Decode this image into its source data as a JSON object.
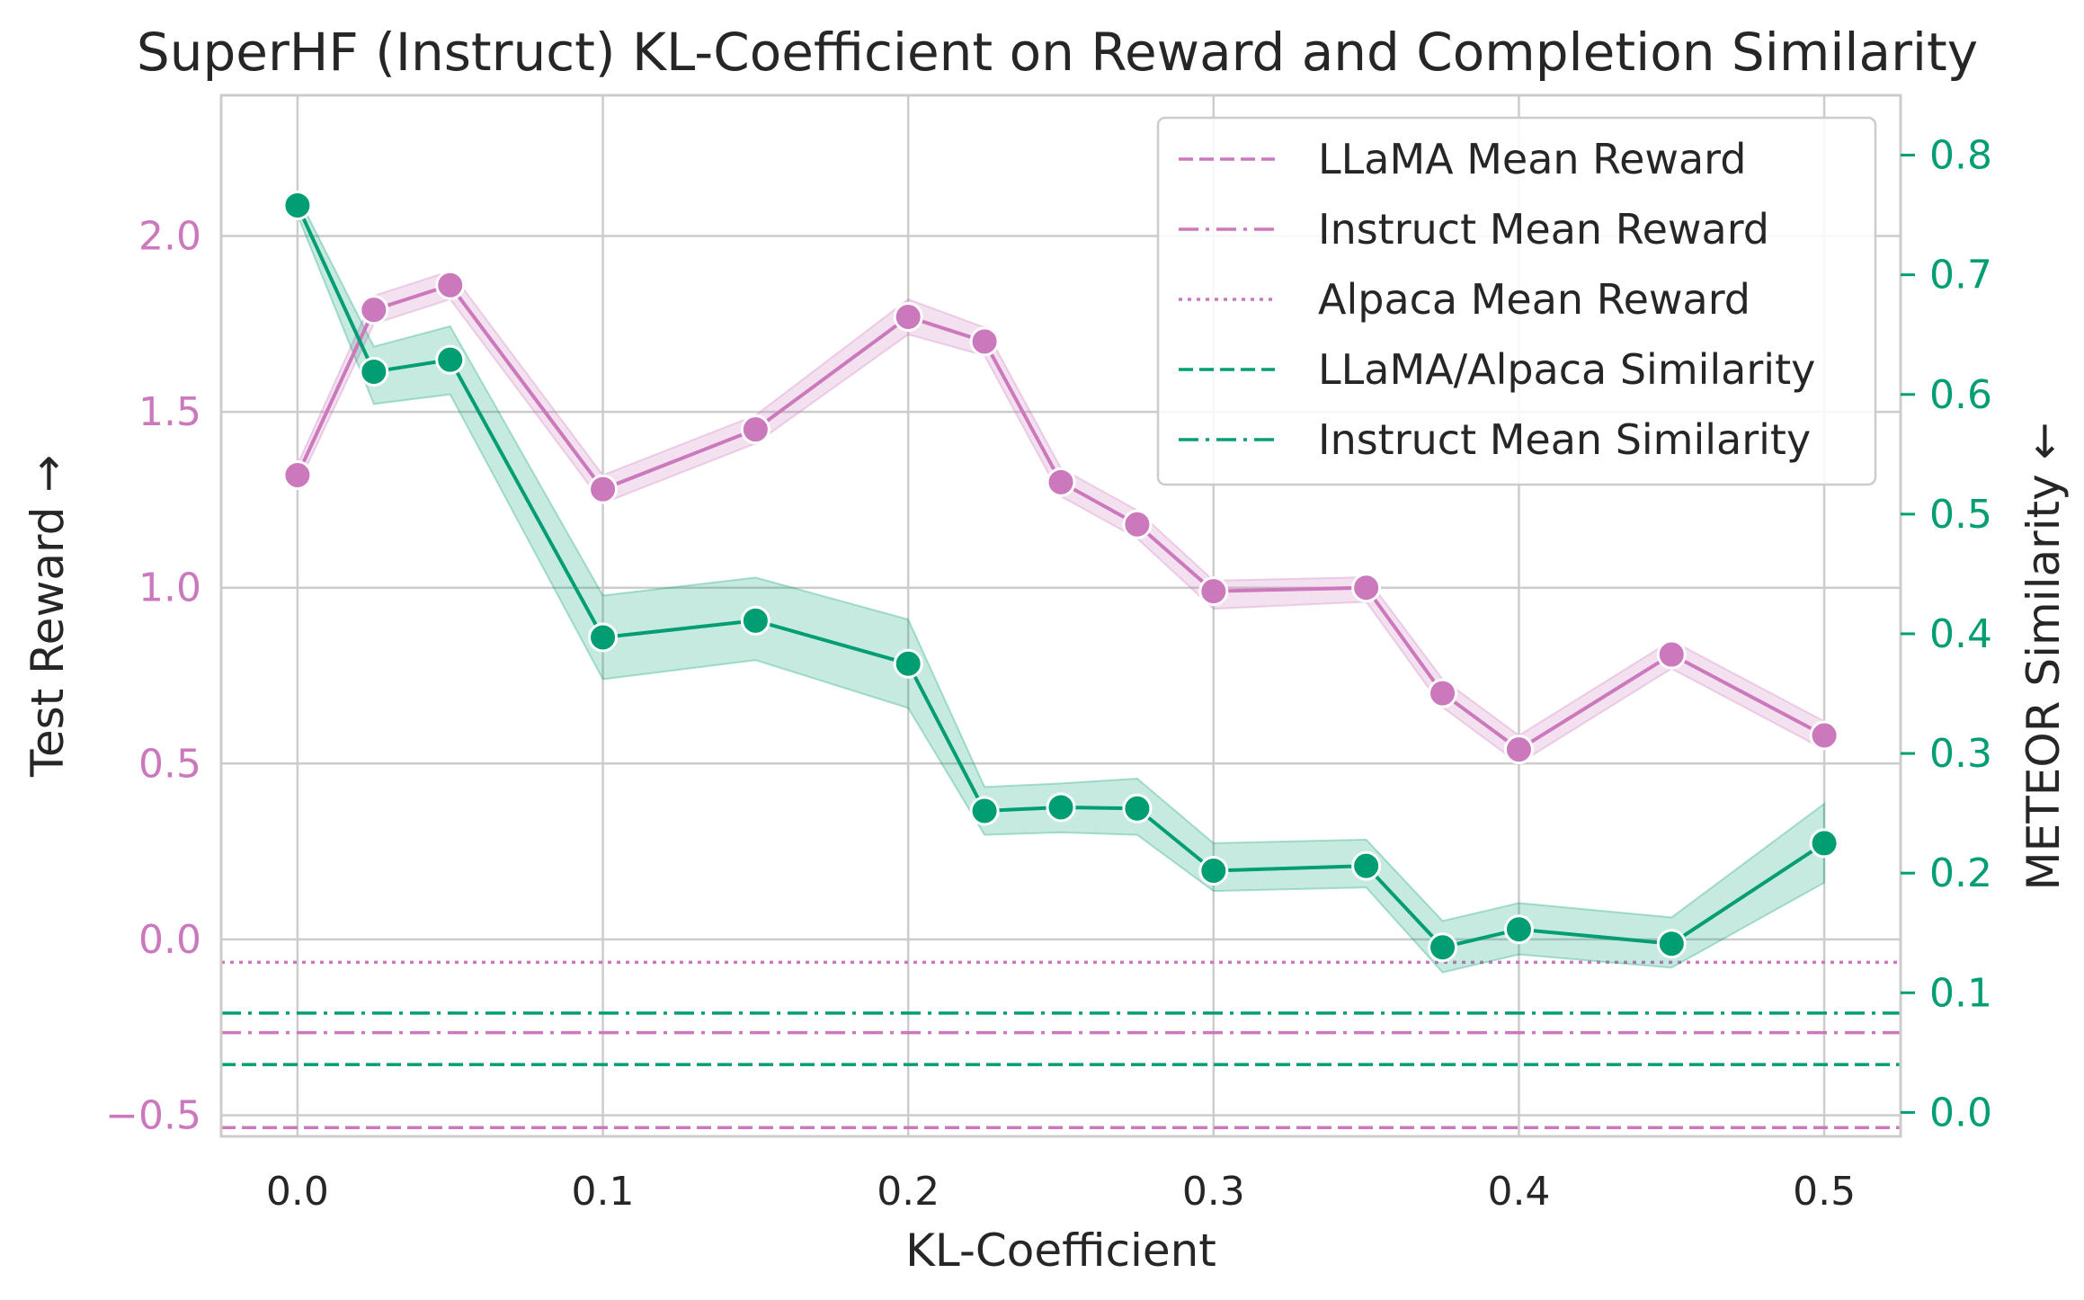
{
  "chart_data": {
    "type": "line",
    "title": "SuperHF (Instruct) KL-Coefficient on Reward and Completion Similarity",
    "xlabel": "KL-Coefficient",
    "ylabel_left": "Test Reward →",
    "ylabel_right": "METEOR Similarity ←",
    "xlim": [
      -0.025,
      0.525
    ],
    "ylim_left": [
      -0.56,
      2.4
    ],
    "ylim_right": [
      -0.02,
      0.85
    ],
    "x_ticks": [
      {
        "value": 0.0,
        "label": "0.0"
      },
      {
        "value": 0.1,
        "label": "0.1"
      },
      {
        "value": 0.2,
        "label": "0.2"
      },
      {
        "value": 0.3,
        "label": "0.3"
      },
      {
        "value": 0.4,
        "label": "0.4"
      },
      {
        "value": 0.5,
        "label": "0.5"
      }
    ],
    "y_ticks_left": [
      {
        "value": -0.5,
        "label": "−0.5"
      },
      {
        "value": 0.0,
        "label": "0.0"
      },
      {
        "value": 0.5,
        "label": "0.5"
      },
      {
        "value": 1.0,
        "label": "1.0"
      },
      {
        "value": 1.5,
        "label": "1.5"
      },
      {
        "value": 2.0,
        "label": "2.0"
      }
    ],
    "y_ticks_right": [
      {
        "value": 0.0,
        "label": "0.0"
      },
      {
        "value": 0.1,
        "label": "0.1"
      },
      {
        "value": 0.2,
        "label": "0.2"
      },
      {
        "value": 0.3,
        "label": "0.3"
      },
      {
        "value": 0.4,
        "label": "0.4"
      },
      {
        "value": 0.5,
        "label": "0.5"
      },
      {
        "value": 0.6,
        "label": "0.6"
      },
      {
        "value": 0.7,
        "label": "0.7"
      },
      {
        "value": 0.8,
        "label": "0.8"
      }
    ],
    "x": [
      0.0,
      0.025,
      0.05,
      0.1,
      0.15,
      0.2,
      0.225,
      0.25,
      0.275,
      0.3,
      0.35,
      0.375,
      0.4,
      0.45,
      0.5
    ],
    "series": [
      {
        "name": "Test Reward",
        "axis": "left",
        "color": "#cc78bc",
        "values": [
          1.32,
          1.79,
          1.86,
          1.28,
          1.45,
          1.77,
          1.7,
          1.3,
          1.18,
          0.99,
          1.0,
          0.7,
          0.54,
          0.81,
          0.58
        ],
        "ci_low": [
          1.29,
          1.75,
          1.82,
          1.24,
          1.41,
          1.72,
          1.66,
          1.26,
          1.14,
          0.94,
          0.96,
          0.66,
          0.5,
          0.77,
          0.54
        ],
        "ci_high": [
          1.35,
          1.83,
          1.9,
          1.32,
          1.49,
          1.82,
          1.74,
          1.34,
          1.22,
          1.02,
          1.03,
          0.74,
          0.58,
          0.85,
          0.62
        ]
      },
      {
        "name": "METEOR Similarity",
        "axis": "right",
        "color": "#029e73",
        "values": [
          0.758,
          0.619,
          0.629,
          0.397,
          0.411,
          0.375,
          0.252,
          0.255,
          0.254,
          0.202,
          0.206,
          0.138,
          0.153,
          0.141,
          0.225
        ],
        "ci_low": [
          0.75,
          0.592,
          0.6,
          0.362,
          0.378,
          0.338,
          0.232,
          0.234,
          0.232,
          0.185,
          0.188,
          0.117,
          0.132,
          0.121,
          0.192
        ],
        "ci_high": [
          0.766,
          0.64,
          0.657,
          0.432,
          0.447,
          0.412,
          0.272,
          0.275,
          0.279,
          0.225,
          0.228,
          0.16,
          0.175,
          0.163,
          0.258
        ]
      }
    ],
    "reference_lines": [
      {
        "name": "LLaMA Mean Reward",
        "axis": "left",
        "value": -0.535,
        "style": "dashed",
        "color": "#cc78bc"
      },
      {
        "name": "Instruct Mean Reward",
        "axis": "left",
        "value": -0.265,
        "style": "dashdot",
        "color": "#cc78bc"
      },
      {
        "name": "Alpaca Mean Reward",
        "axis": "left",
        "value": -0.065,
        "style": "dotted",
        "color": "#cc78bc"
      },
      {
        "name": "LLaMA/Alpaca Similarity",
        "axis": "right",
        "value": 0.04,
        "style": "dashed",
        "color": "#029e73"
      },
      {
        "name": "Instruct Mean Similarity",
        "axis": "right",
        "value": 0.083,
        "style": "dashdot",
        "color": "#029e73"
      }
    ],
    "legend": {
      "placement": "top-right",
      "entries": [
        {
          "label": "LLaMA Mean Reward",
          "style": "dashed",
          "color": "#cc78bc"
        },
        {
          "label": "Instruct Mean Reward",
          "style": "dashdot",
          "color": "#cc78bc"
        },
        {
          "label": "Alpaca Mean Reward",
          "style": "dotted",
          "color": "#cc78bc"
        },
        {
          "label": "LLaMA/Alpaca Similarity",
          "style": "dashed",
          "color": "#029e73"
        },
        {
          "label": "Instruct Mean Similarity",
          "style": "dashdot",
          "color": "#029e73"
        }
      ]
    },
    "grid": true,
    "colors": {
      "reward": "#cc78bc",
      "similarity": "#029e73",
      "text": "#262626",
      "grid": "#cccccc"
    }
  }
}
